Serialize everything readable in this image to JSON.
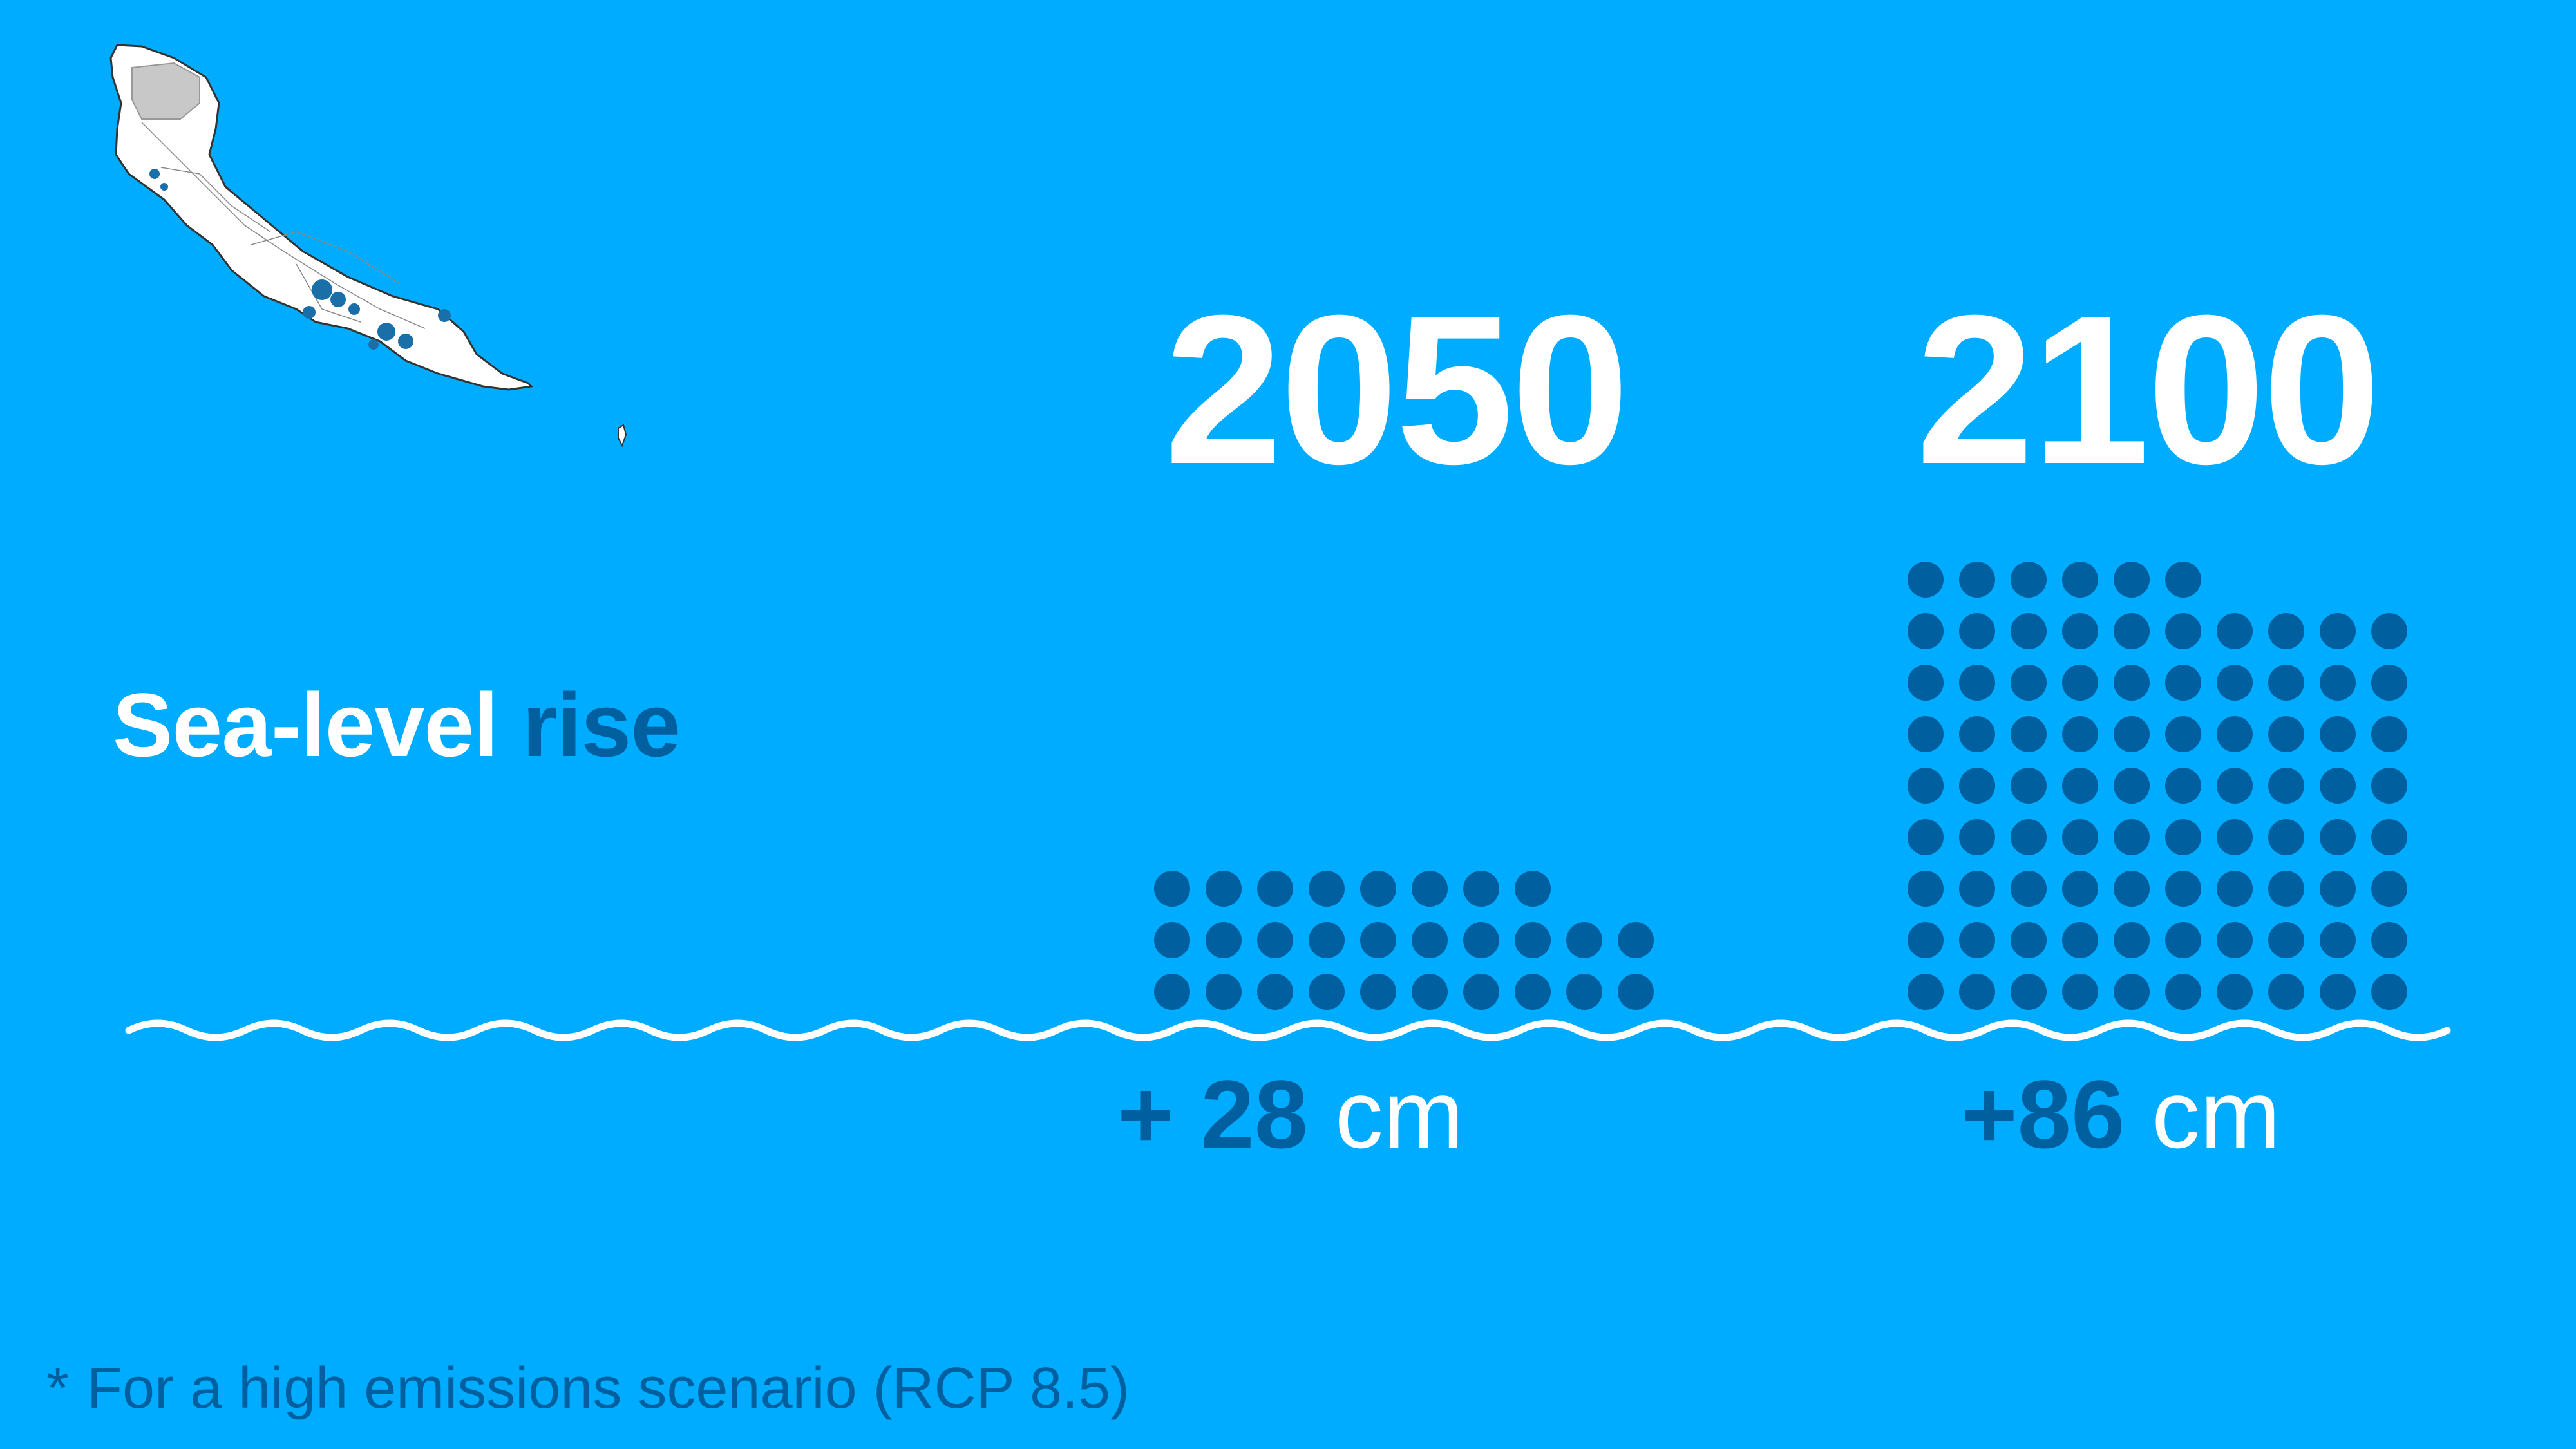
{
  "title": {
    "main": "Sea-level",
    "accent": "rise"
  },
  "footnote": {
    "marker": "*",
    "text": "For a high emissions scenario (RCP 8.5)"
  },
  "colors": {
    "background": "#00acff",
    "dots": "#005f9e",
    "accent_text": "#005f9e",
    "text": "#ffffff",
    "island": "#ffffff",
    "urban": "#1a6fa8",
    "hills": "#c8c8c8"
  },
  "icons": {
    "map": "island-map-icon",
    "waves": "wave-line-icon"
  },
  "chart_data": {
    "type": "bar",
    "unit": "cm",
    "categories": [
      "2050",
      "2100"
    ],
    "values": [
      28,
      86
    ],
    "labels": [
      {
        "prefix": "+ ",
        "number": "28",
        "unit": " cm"
      },
      {
        "prefix": "+",
        "number": "86",
        "unit": " cm"
      }
    ],
    "dots_per_row": 10
  }
}
